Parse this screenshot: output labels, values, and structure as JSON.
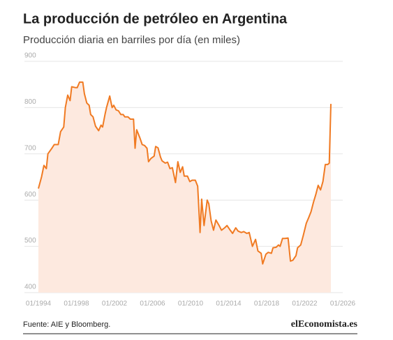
{
  "chart_data": {
    "type": "area",
    "title": "La producción de petróleo en Argentina",
    "subtitle": "Producción diaria en barriles por día (en miles)",
    "source": "Fuente: AIE y Bloomberg.",
    "logo": "elEconomista.es",
    "color": "#f07a22",
    "fill": "#fde9df",
    "grid": true,
    "xlim": [
      "01/1994",
      "01/2026"
    ],
    "xticks": [
      "01/1994",
      "01/1998",
      "01/2002",
      "01/2006",
      "01/2010",
      "01/2014",
      "01/2018",
      "01/2022",
      "01/2026"
    ],
    "ylim": [
      400,
      900
    ],
    "yticks": [
      400,
      500,
      600,
      700,
      800,
      900
    ],
    "x": [
      "01/1994",
      "05/1994",
      "08/1994",
      "11/1994",
      "01/1995",
      "06/1995",
      "09/1995",
      "02/1996",
      "05/1996",
      "09/1996",
      "11/1996",
      "02/1997",
      "05/1997",
      "07/1997",
      "12/1997",
      "02/1998",
      "05/1998",
      "09/1998",
      "11/1998",
      "02/1999",
      "05/1999",
      "07/1999",
      "10/1999",
      "01/2000",
      "05/2000",
      "08/2000",
      "10/2000",
      "01/2001",
      "03/2001",
      "07/2001",
      "10/2001",
      "12/2001",
      "03/2002",
      "06/2002",
      "09/2002",
      "12/2002",
      "02/2003",
      "06/2003",
      "09/2003",
      "01/2004",
      "03/2004",
      "05/2004",
      "09/2004",
      "12/2004",
      "03/2005",
      "06/2005",
      "08/2005",
      "11/2005",
      "03/2006",
      "05/2006",
      "08/2006",
      "11/2006",
      "01/2007",
      "05/2007",
      "08/2007",
      "11/2007",
      "02/2008",
      "06/2008",
      "09/2008",
      "12/2008",
      "03/2009",
      "05/2009",
      "09/2009",
      "12/2009",
      "03/2010",
      "07/2010",
      "10/2010",
      "01/2011",
      "03/2011",
      "06/2011",
      "10/2011",
      "12/2011",
      "03/2012",
      "06/2012",
      "09/2012",
      "01/2013",
      "04/2013",
      "08/2013",
      "11/2013",
      "03/2014",
      "06/2014",
      "10/2014",
      "01/2015",
      "05/2015",
      "08/2015",
      "12/2015",
      "03/2016",
      "07/2016",
      "11/2016",
      "02/2017",
      "06/2017",
      "08/2017",
      "12/2017",
      "03/2018",
      "07/2018",
      "09/2018",
      "01/2019",
      "04/2019",
      "06/2019",
      "09/2019",
      "12/2019",
      "04/2020",
      "07/2020",
      "10/2020",
      "02/2021",
      "04/2021",
      "08/2021",
      "11/2021",
      "03/2022",
      "06/2022",
      "09/2022",
      "12/2022",
      "03/2023",
      "06/2023",
      "09/2023",
      "12/2023",
      "03/2024",
      "06/2024",
      "08/2024",
      "10/2024"
    ],
    "values": [
      625,
      650,
      675,
      668,
      700,
      712,
      720,
      720,
      748,
      758,
      800,
      827,
      815,
      845,
      843,
      843,
      855,
      855,
      830,
      810,
      805,
      785,
      780,
      760,
      750,
      762,
      758,
      785,
      800,
      825,
      800,
      805,
      795,
      793,
      785,
      785,
      780,
      780,
      775,
      775,
      712,
      752,
      735,
      720,
      718,
      712,
      683,
      690,
      695,
      716,
      713,
      693,
      685,
      680,
      682,
      668,
      670,
      638,
      683,
      660,
      672,
      652,
      652,
      640,
      643,
      643,
      630,
      530,
      602,
      545,
      600,
      592,
      555,
      535,
      557,
      545,
      535,
      540,
      545,
      535,
      528,
      540,
      533,
      530,
      532,
      528,
      530,
      500,
      515,
      490,
      485,
      462,
      483,
      487,
      485,
      497,
      498,
      503,
      500,
      517,
      517,
      518,
      468,
      470,
      480,
      497,
      503,
      522,
      550,
      562,
      575,
      595,
      612,
      632,
      622,
      640,
      677,
      677,
      680,
      808
    ]
  }
}
